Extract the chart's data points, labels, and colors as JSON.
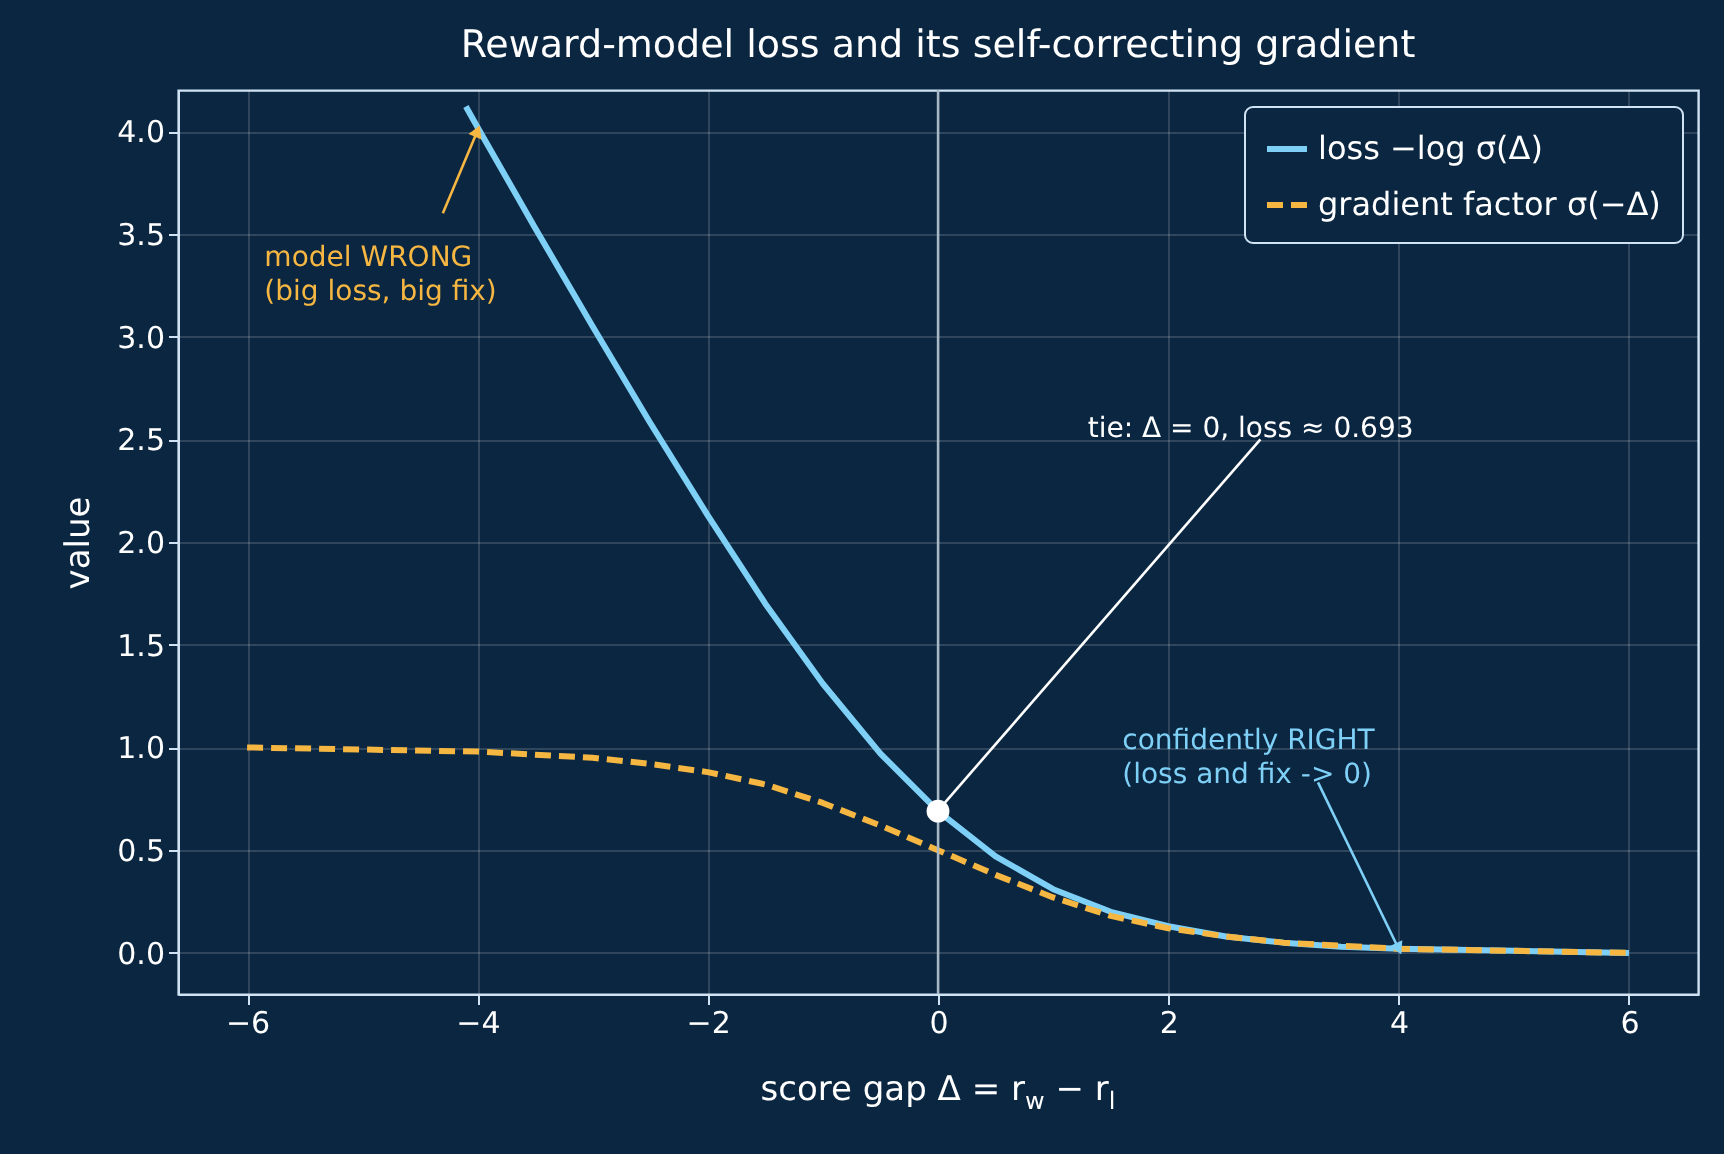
{
  "chart_data": {
    "type": "line",
    "title": "Reward-model loss and its self-correcting gradient",
    "xlabel": "score gap  Δ = r$_{w}$ − r$_{l}$",
    "ylabel": "value",
    "xlim": [
      -6.6,
      6.6
    ],
    "xticks": [
      {
        "value": -6,
        "label": "−6"
      },
      {
        "value": -4,
        "label": "−4"
      },
      {
        "value": -2,
        "label": "−2"
      },
      0,
      2,
      4,
      6
    ],
    "ylim": [
      -0.2,
      4.2
    ],
    "yticks": [
      {
        "value": 0,
        "label": "0.0"
      },
      0.5,
      {
        "value": 1,
        "label": "1.0"
      },
      1.5,
      {
        "value": 2,
        "label": "2.0"
      },
      2.5,
      {
        "value": 3,
        "label": "3.0"
      },
      3.5,
      {
        "value": 4,
        "label": "4.0"
      }
    ],
    "grid": true,
    "legend": "top right",
    "series": [
      {
        "name": "loss −log σ(Δ)",
        "color": "#7fd0f7",
        "type": "line",
        "line_style": "solid",
        "x": [
          -4.1,
          -4,
          -3.5,
          -3,
          -2.5,
          -2,
          -1.5,
          -1,
          -0.5,
          0,
          0.5,
          1,
          1.5,
          2,
          2.5,
          3,
          3.5,
          4,
          5,
          6
        ],
        "values": [
          4.12,
          4.02,
          3.53,
          3.05,
          2.58,
          2.13,
          1.7,
          1.31,
          0.97,
          0.69,
          0.47,
          0.31,
          0.2,
          0.13,
          0.08,
          0.05,
          0.03,
          0.02,
          0.01,
          0.0
        ]
      },
      {
        "name": "gradient factor σ(−Δ)",
        "color": "#f5b642",
        "type": "line",
        "line_style": "dashed",
        "x": [
          -6,
          -5,
          -4,
          -3,
          -2.5,
          -2,
          -1.5,
          -1,
          -0.5,
          0,
          0.5,
          1,
          1.5,
          2,
          2.5,
          3,
          4,
          5,
          6
        ],
        "values": [
          1.0,
          0.99,
          0.98,
          0.95,
          0.92,
          0.88,
          0.82,
          0.73,
          0.62,
          0.5,
          0.38,
          0.27,
          0.18,
          0.12,
          0.08,
          0.05,
          0.02,
          0.01,
          0.0
        ]
      },
      {
        "color": "#ffffff",
        "type": "scatter",
        "marker": "circle",
        "x": [
          0
        ],
        "values": [
          0.69
        ]
      }
    ],
    "ref_lines": [
      {
        "axis": "x",
        "value": 0,
        "color": "#a9b8c6"
      }
    ],
    "annotations": [
      {
        "text": "model WRONG\n(big loss, big fix)",
        "x": -4,
        "y": 4.0
      },
      {
        "text": "tie: Δ = 0, loss ≈ 0.693",
        "x": 0,
        "y": 0.693
      },
      {
        "text": "confidently RIGHT\n(loss and fix -> 0)",
        "x": 4,
        "y": 0.02
      }
    ]
  }
}
